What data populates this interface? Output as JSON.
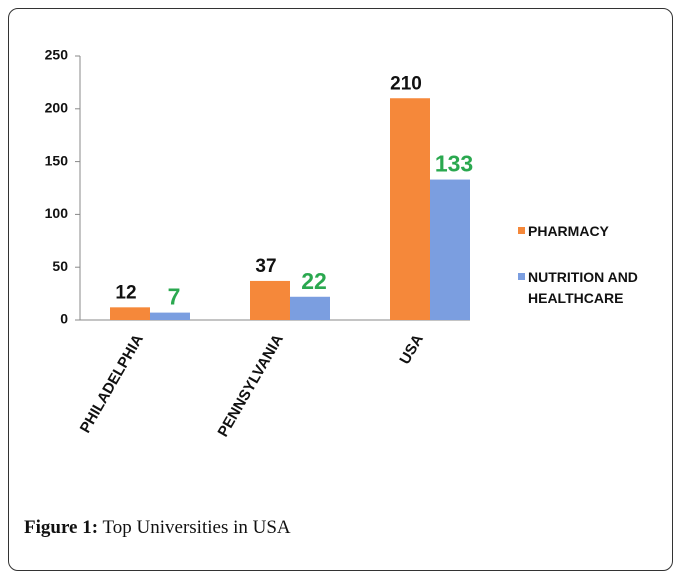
{
  "chart_data": {
    "type": "bar",
    "categories": [
      "PHILADELPHIA",
      "PENNSYLVANIA",
      "USA"
    ],
    "series": [
      {
        "name": "PHARMACY",
        "color": "#f5883a",
        "label_color": "#111111",
        "values": [
          12,
          37,
          210
        ]
      },
      {
        "name": "NUTRITION AND HEALTHCARE",
        "color": "#7b9ee0",
        "label_color": "#2aa84f",
        "values": [
          7,
          22,
          133
        ]
      }
    ],
    "ylim": [
      0,
      250
    ],
    "yticks": [
      0,
      50,
      100,
      150,
      200,
      250
    ],
    "grid": false,
    "legend": "right"
  },
  "caption": {
    "label": "Figure 1:",
    "text": "Top Universities in USA"
  }
}
